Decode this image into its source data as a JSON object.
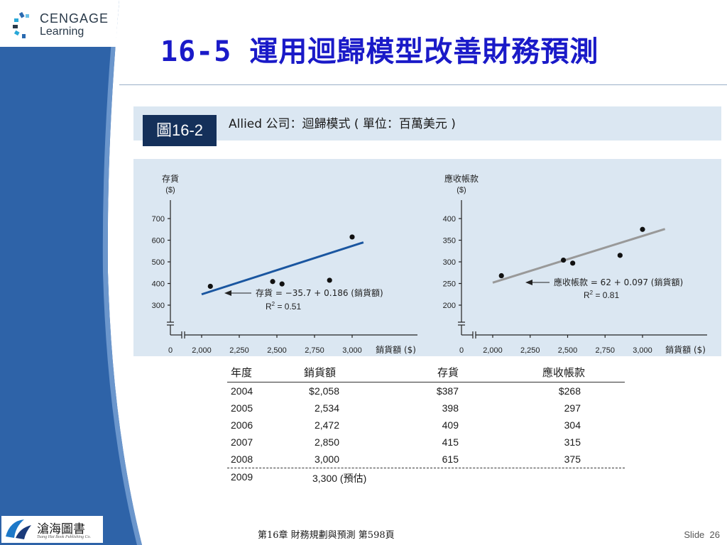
{
  "header": {
    "logo_line1": "CENGAGE",
    "logo_line2": "Learning",
    "title": "16-5 運用迴歸模型改善財務預測"
  },
  "figure": {
    "badge": "圖16-2",
    "caption": "Allied 公司：迴歸模式 ( 單位：百萬美元 )"
  },
  "chart_data": [
    {
      "type": "scatter",
      "ylabel": "存貨",
      "ylabel_unit": "($)",
      "xlabel": "銷貨額 ($)",
      "x_ticks": [
        "0",
        "2,000",
        "2,250",
        "2,500",
        "2,750",
        "3,000"
      ],
      "y_ticks": [
        "300",
        "400",
        "500",
        "600",
        "700"
      ],
      "x": [
        2058,
        2534,
        2472,
        2850,
        3000
      ],
      "y": [
        387,
        398,
        409,
        415,
        615
      ],
      "regression_line": {
        "x": [
          2000,
          3075
        ],
        "y": [
          350,
          590
        ]
      },
      "equation": "存貨 = −35.7 + 0.186 (銷貨額)",
      "r2_prefix": "R",
      "r2_exp": "2",
      "r2_value": " = 0.51",
      "line_color": "#1a56a0"
    },
    {
      "type": "scatter",
      "ylabel": "應收帳款",
      "ylabel_unit": "($)",
      "xlabel": "銷貨額 ($)",
      "x_ticks": [
        "0",
        "2,000",
        "2,250",
        "2,500",
        "2,750",
        "3,000"
      ],
      "y_ticks": [
        "200",
        "250",
        "300",
        "350",
        "400"
      ],
      "x": [
        2058,
        2534,
        2472,
        2850,
        3000
      ],
      "y": [
        268,
        297,
        304,
        315,
        375
      ],
      "regression_line": {
        "x": [
          2000,
          3150
        ],
        "y": [
          252,
          376
        ]
      },
      "equation": "應收帳款 = 62 + 0.097 (銷貨額)",
      "r2_prefix": "R",
      "r2_exp": "2",
      "r2_value": " = 0.81",
      "line_color": "#999999"
    }
  ],
  "table": {
    "headers": [
      "年度",
      "銷貨額",
      "存貨",
      "應收帳款"
    ],
    "rows": [
      [
        "2004",
        "$2,058",
        "$387",
        "$268"
      ],
      [
        "2005",
        "2,534",
        "398",
        "297"
      ],
      [
        "2006",
        "2,472",
        "409",
        "304"
      ],
      [
        "2007",
        "2,850",
        "415",
        "315"
      ],
      [
        "2008",
        "3,000",
        "615",
        "375"
      ],
      [
        "2009",
        "3,300 (預估)",
        "",
        ""
      ]
    ]
  },
  "footer": {
    "publisher_logo": "滄海圖書",
    "publisher_sub": "Tsang Hai Book Publishing Co.",
    "chapter_text": "第16章 財務規劃與預測 第598頁",
    "slide_label": "Slide",
    "slide_number": "26"
  },
  "colors": {
    "sidebar_blue": "#2e63a8",
    "title_blue": "#1a1ac8",
    "badge_navy": "#14305a",
    "panel_bg": "#dbe7f2"
  }
}
